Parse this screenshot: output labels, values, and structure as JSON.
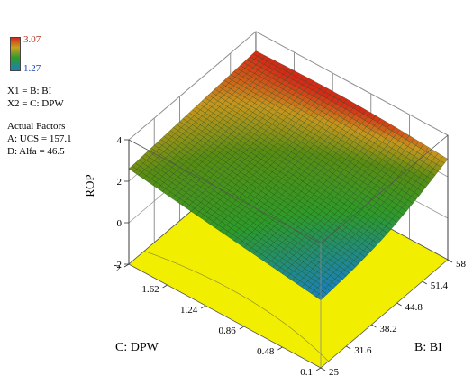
{
  "legend": {
    "max_label": "3.07",
    "min_label": "1.27",
    "max_color": "#d42b18",
    "min_color": "#1a7fc3"
  },
  "factors": {
    "x1": "X1 = B: BI",
    "x2": "X2 = C: DPW"
  },
  "actual_factors": {
    "title": "Actual Factors",
    "a": "A: UCS = 157.1",
    "d": "D: Alfa = 46.5"
  },
  "chart_data": {
    "type": "surface3d",
    "zlabel": "ROP",
    "xlabel": "B: BI",
    "ylabel": "C: DPW",
    "xticks": [
      "25",
      "31.6",
      "38.2",
      "44.8",
      "51.4",
      "58"
    ],
    "yticks": [
      "0.1",
      "0.48",
      "0.86",
      "1.24",
      "1.62",
      "2"
    ],
    "zticks": [
      "-2",
      "0",
      "2",
      "4"
    ],
    "xlim": [
      25,
      58
    ],
    "ylim": [
      0.1,
      2
    ],
    "zlim": [
      -2,
      4
    ],
    "floor_color": "#f2ee00",
    "surface_corners": {
      "x25_y0.1": 1.27,
      "x58_y0.1": 2.85,
      "x25_y2": 2.6,
      "x58_y2": 3.07
    }
  }
}
